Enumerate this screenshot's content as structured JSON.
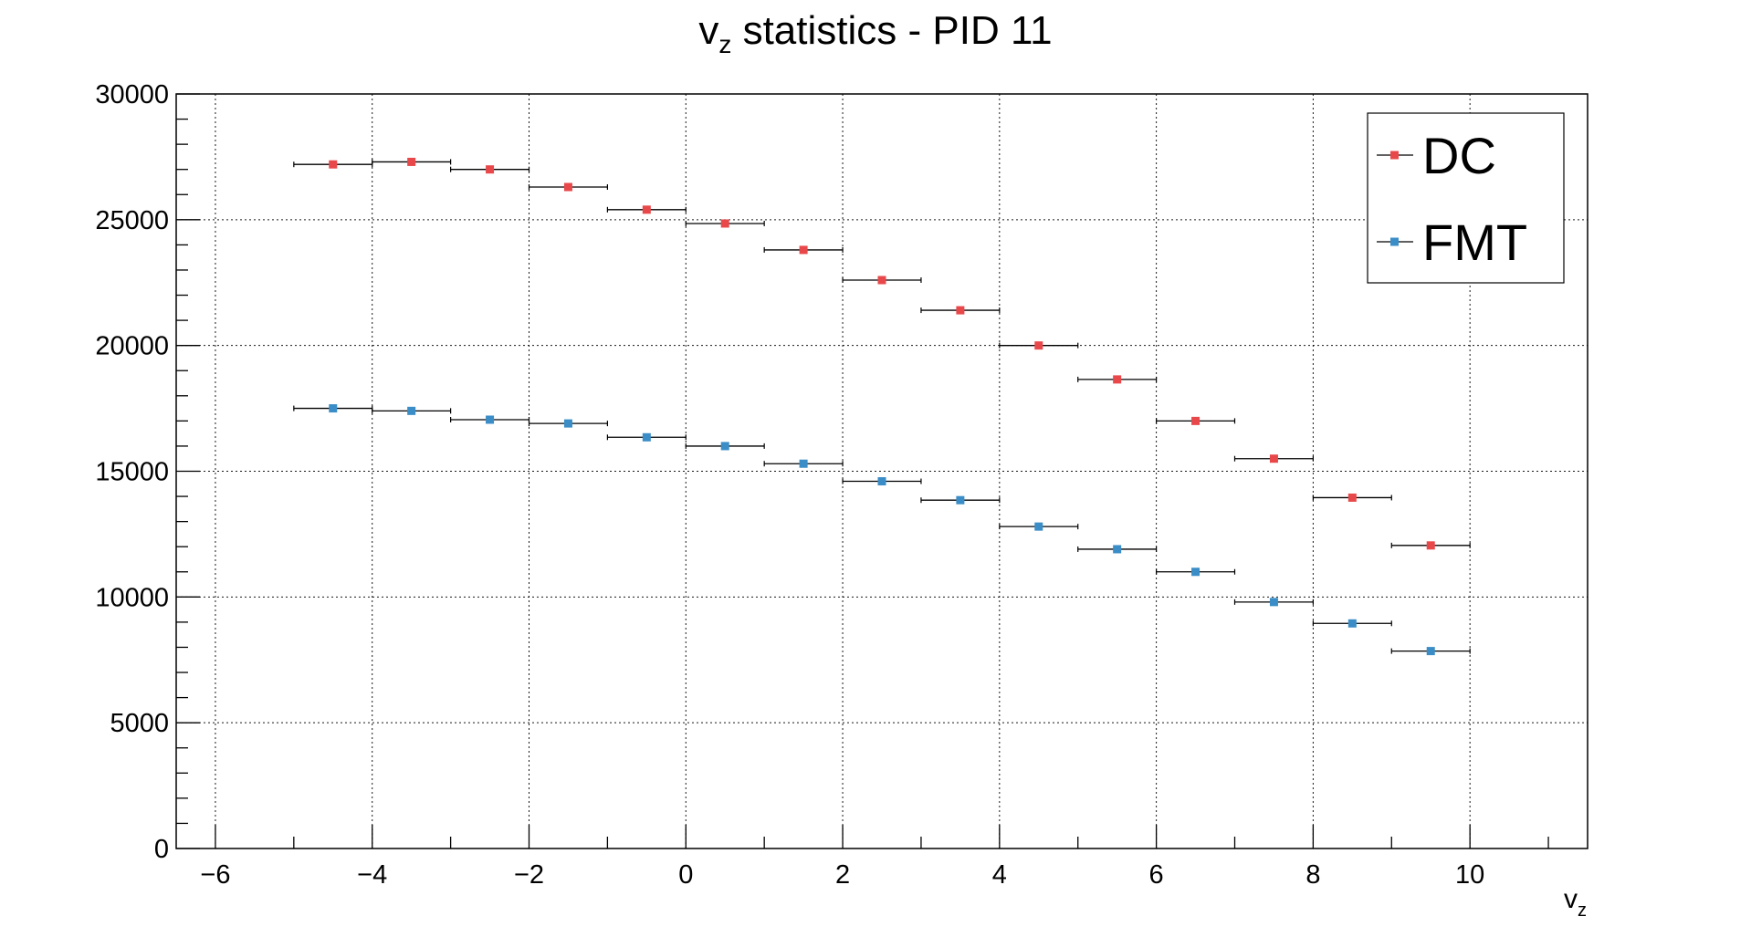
{
  "chart_data": {
    "type": "scatter",
    "title": "v",
    "title_sub": "z",
    "title_rest": " statistics - PID 11",
    "xlabel": "v",
    "xlabel_sub": "z",
    "ylabel": "",
    "xlim": [
      -6.5,
      11.5
    ],
    "ylim": [
      0,
      30000
    ],
    "xticks": [
      -6,
      -4,
      -2,
      0,
      2,
      4,
      6,
      8,
      10
    ],
    "xtick_labels": [
      "−6",
      "−4",
      "−2",
      "0",
      "2",
      "4",
      "6",
      "8",
      "10"
    ],
    "yticks": [
      0,
      5000,
      10000,
      15000,
      20000,
      25000,
      30000
    ],
    "ytick_labels": [
      "0",
      "5000",
      "10000",
      "15000",
      "20000",
      "25000",
      "30000"
    ],
    "grid": true,
    "legend_position": "top-right",
    "bin_half_width": 0.5,
    "series": [
      {
        "name": "DC",
        "color": "#e8484a",
        "x": [
          -4.5,
          -3.5,
          -2.5,
          -1.5,
          -0.5,
          0.5,
          1.5,
          2.5,
          3.5,
          4.5,
          5.5,
          6.5,
          7.5,
          8.5,
          9.5
        ],
        "y": [
          27200,
          27300,
          27000,
          26300,
          25400,
          24850,
          23800,
          22600,
          21400,
          20000,
          18650,
          17000,
          15500,
          13950,
          12050
        ]
      },
      {
        "name": "FMT",
        "color": "#3a8dc6",
        "x": [
          -4.5,
          -3.5,
          -2.5,
          -1.5,
          -0.5,
          0.5,
          1.5,
          2.5,
          3.5,
          4.5,
          5.5,
          6.5,
          7.5,
          8.5,
          9.5
        ],
        "y": [
          17500,
          17400,
          17050,
          16900,
          16350,
          16000,
          15300,
          14600,
          13850,
          12800,
          11900,
          11000,
          9800,
          8950,
          7850
        ]
      }
    ]
  }
}
